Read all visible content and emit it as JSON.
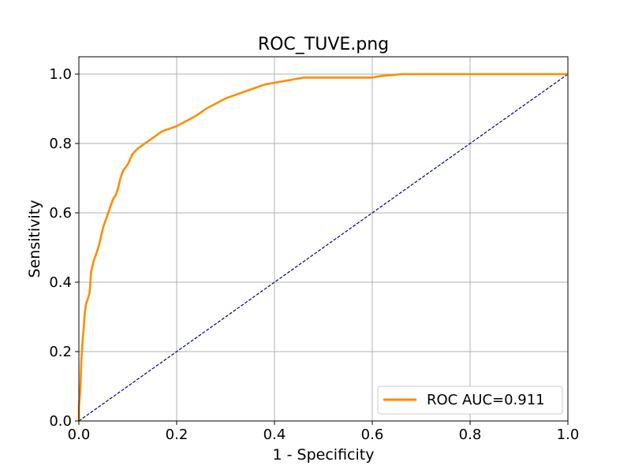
{
  "chart_data": {
    "type": "line",
    "title": "ROC_TUVE.png",
    "xlabel": "1 - Specificity",
    "ylabel": "Sensitivity",
    "xlim": [
      0.0,
      1.0
    ],
    "ylim": [
      0.0,
      1.05
    ],
    "x_ticks": [
      0.0,
      0.2,
      0.4,
      0.6,
      0.8,
      1.0
    ],
    "x_tick_labels": [
      "0.0",
      "0.2",
      "0.4",
      "0.6",
      "0.8",
      "1.0"
    ],
    "y_ticks": [
      0.0,
      0.2,
      0.4,
      0.6,
      0.8,
      1.0
    ],
    "y_tick_labels": [
      "0.0",
      "0.2",
      "0.4",
      "0.6",
      "0.8",
      "1.0"
    ],
    "grid": true,
    "legend_position": "lower-right",
    "series": [
      {
        "name": "ROC AUC=0.911",
        "color": "#ff8c00",
        "style": "solid",
        "x": [
          0.0,
          0.0,
          0.003,
          0.005,
          0.007,
          0.01,
          0.012,
          0.015,
          0.018,
          0.022,
          0.025,
          0.03,
          0.035,
          0.04,
          0.045,
          0.05,
          0.055,
          0.06,
          0.065,
          0.07,
          0.075,
          0.08,
          0.085,
          0.09,
          0.095,
          0.1,
          0.11,
          0.12,
          0.13,
          0.14,
          0.15,
          0.16,
          0.17,
          0.18,
          0.19,
          0.2,
          0.22,
          0.24,
          0.26,
          0.28,
          0.3,
          0.32,
          0.34,
          0.36,
          0.38,
          0.4,
          0.42,
          0.44,
          0.46,
          0.5,
          0.55,
          0.6,
          0.62,
          0.64,
          0.66,
          0.7,
          0.8,
          0.9,
          1.0
        ],
        "y": [
          0.0,
          0.04,
          0.09,
          0.17,
          0.22,
          0.27,
          0.31,
          0.34,
          0.35,
          0.37,
          0.43,
          0.46,
          0.48,
          0.5,
          0.53,
          0.56,
          0.58,
          0.6,
          0.62,
          0.64,
          0.65,
          0.67,
          0.7,
          0.72,
          0.73,
          0.74,
          0.77,
          0.785,
          0.795,
          0.805,
          0.815,
          0.825,
          0.835,
          0.84,
          0.845,
          0.85,
          0.865,
          0.88,
          0.9,
          0.915,
          0.93,
          0.94,
          0.95,
          0.96,
          0.97,
          0.975,
          0.98,
          0.985,
          0.99,
          0.99,
          0.99,
          0.99,
          0.995,
          0.997,
          1.0,
          1.0,
          1.0,
          1.0,
          1.0
        ]
      },
      {
        "color": "#00008b",
        "style": "dashed",
        "x": [
          0.0,
          1.0
        ],
        "y": [
          0.0,
          1.0
        ]
      }
    ]
  }
}
